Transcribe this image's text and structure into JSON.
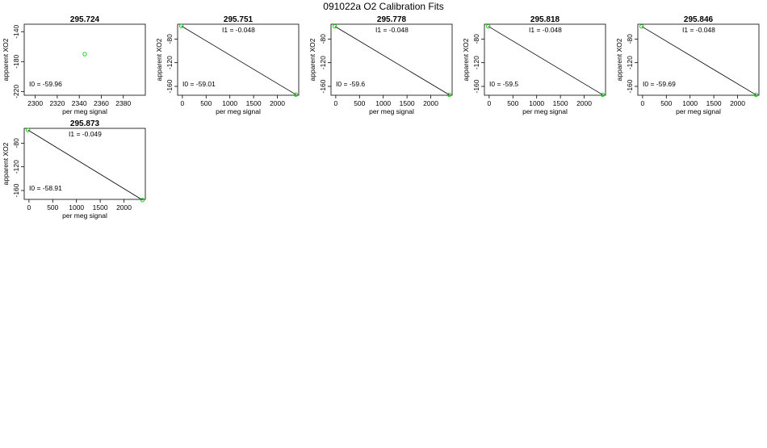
{
  "figure": {
    "title": "091022a   O2 Calibration Fits"
  },
  "colors": {
    "line": "#000000",
    "point": "#00cc00",
    "frame": "#000000"
  },
  "chart_data": [
    {
      "type": "scatter",
      "title": "295.724",
      "xlabel": "per meg signal",
      "ylabel": "apparent XO2",
      "xlim": [
        2290,
        2400
      ],
      "ylim": [
        -225,
        -130
      ],
      "xticks": [
        2300,
        2320,
        2340,
        2360,
        2380
      ],
      "yticks": [
        -140,
        -180,
        -220
      ],
      "points": [
        {
          "x": 2345,
          "y": -170
        }
      ],
      "fit_line": null,
      "i0_text": "I0 =  -59.96",
      "i1_text": ""
    },
    {
      "type": "scatter",
      "title": "295.751",
      "xlabel": "per meg signal",
      "ylabel": "apparent XO2",
      "xlim": [
        -100,
        2450
      ],
      "ylim": [
        -175,
        -55
      ],
      "xticks": [
        0,
        500,
        1000,
        1500,
        2000
      ],
      "yticks": [
        -80,
        -120,
        -160
      ],
      "points": [
        {
          "x": -20,
          "y": -58.1
        },
        {
          "x": 2390,
          "y": -173.9
        }
      ],
      "fit_line": {
        "x0": -20,
        "y0": -58.1,
        "x1": 2390,
        "y1": -173.9
      },
      "i0_text": "I0 =  -59.01",
      "i1_text": "I1 =  -0.048"
    },
    {
      "type": "scatter",
      "title": "295.778",
      "xlabel": "per meg signal",
      "ylabel": "apparent XO2",
      "xlim": [
        -100,
        2450
      ],
      "ylim": [
        -175,
        -55
      ],
      "xticks": [
        0,
        500,
        1000,
        1500,
        2000
      ],
      "yticks": [
        -80,
        -120,
        -160
      ],
      "points": [
        {
          "x": -20,
          "y": -58.6
        },
        {
          "x": 2390,
          "y": -174.3
        }
      ],
      "fit_line": {
        "x0": -20,
        "y0": -58.6,
        "x1": 2390,
        "y1": -174.3
      },
      "i0_text": "I0 =  -59.6",
      "i1_text": "I1 =  -0.048"
    },
    {
      "type": "scatter",
      "title": "295.818",
      "xlabel": "per meg signal",
      "ylabel": "apparent XO2",
      "xlim": [
        -100,
        2450
      ],
      "ylim": [
        -175,
        -55
      ],
      "xticks": [
        0,
        500,
        1000,
        1500,
        2000
      ],
      "yticks": [
        -80,
        -120,
        -160
      ],
      "points": [
        {
          "x": -20,
          "y": -58.5
        },
        {
          "x": 2390,
          "y": -174.2
        }
      ],
      "fit_line": {
        "x0": -20,
        "y0": -58.5,
        "x1": 2390,
        "y1": -174.2
      },
      "i0_text": "I0 =  -59.5",
      "i1_text": "I1 =  -0.048"
    },
    {
      "type": "scatter",
      "title": "295.846",
      "xlabel": "per meg signal",
      "ylabel": "apparent XO2",
      "xlim": [
        -100,
        2450
      ],
      "ylim": [
        -175,
        -55
      ],
      "xticks": [
        0,
        500,
        1000,
        1500,
        2000
      ],
      "yticks": [
        -80,
        -120,
        -160
      ],
      "points": [
        {
          "x": -20,
          "y": -58.7
        },
        {
          "x": 2390,
          "y": -174.4
        }
      ],
      "fit_line": {
        "x0": -20,
        "y0": -58.7,
        "x1": 2390,
        "y1": -174.4
      },
      "i0_text": "I0 =  -59.69",
      "i1_text": "I1 =  -0.048"
    },
    {
      "type": "scatter",
      "title": "295.873",
      "xlabel": "per meg signal",
      "ylabel": "apparent XO2",
      "xlim": [
        -100,
        2450
      ],
      "ylim": [
        -175,
        -55
      ],
      "xticks": [
        0,
        500,
        1000,
        1500,
        2000
      ],
      "yticks": [
        -80,
        -120,
        -160
      ],
      "points": [
        {
          "x": -20,
          "y": -57.9
        },
        {
          "x": 2390,
          "y": -176.0
        }
      ],
      "fit_line": {
        "x0": -20,
        "y0": -57.9,
        "x1": 2390,
        "y1": -176.0
      },
      "i0_text": "I0 =  -58.91",
      "i1_text": "I1 =  -0.049"
    }
  ]
}
